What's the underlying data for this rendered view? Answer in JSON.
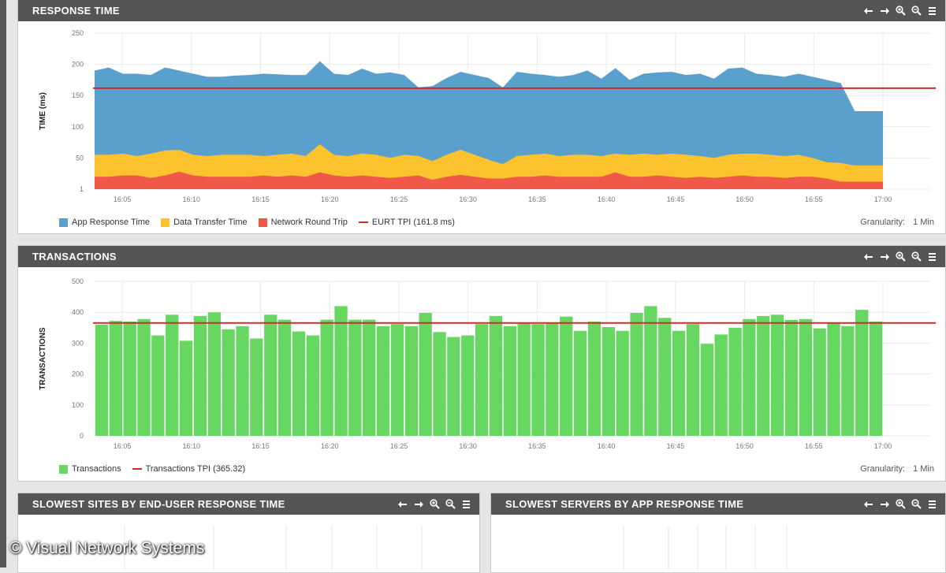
{
  "colors": {
    "app_response": "#5aa0cc",
    "data_transfer": "#fcc32e",
    "network_round_trip": "#f0584a",
    "threshold": "#d62a2a",
    "transactions": "#66d861",
    "header_bg": "#555555"
  },
  "toolbar_icons": [
    "arrow-left-icon",
    "arrow-right-icon",
    "zoom-in-icon",
    "zoom-out-icon",
    "menu-icon"
  ],
  "response_panel": {
    "title": "RESPONSE TIME",
    "granularity_label": "Granularity:",
    "granularity_value": "1 Min",
    "legend": {
      "app": "App Response Time",
      "data": "Data Transfer Time",
      "network": "Network Round Trip",
      "tpi": "EURT TPI (161.8 ms)"
    }
  },
  "transactions_panel": {
    "title": "TRANSACTIONS",
    "granularity_label": "Granularity:",
    "granularity_value": "1 Min",
    "legend": {
      "tx": "Transactions",
      "tpi": "Transactions TPI (365.32)"
    }
  },
  "sites_panel": {
    "title": "SLOWEST SITES BY END-USER RESPONSE TIME"
  },
  "servers_panel": {
    "title": "SLOWEST SERVERS BY APP RESPONSE TIME"
  },
  "watermark": "© Visual Network Systems",
  "chart_data": [
    {
      "type": "area",
      "title": "RESPONSE TIME",
      "ylabel": "TIME (ms)",
      "xlabel": "",
      "ylim": [
        0,
        250
      ],
      "yticks": [
        "250",
        "200",
        "150",
        "100",
        "50",
        "1"
      ],
      "xticks": [
        "16:05",
        "16:10",
        "16:15",
        "16:20",
        "16:25",
        "16:30",
        "16:35",
        "16:40",
        "16:45",
        "16:50",
        "16:55",
        "17:00"
      ],
      "x_range": [
        "16:03",
        "17:00"
      ],
      "threshold": 161.8,
      "series": [
        {
          "name": "App Response Time",
          "total": [
            190,
            195,
            185,
            185,
            183,
            195,
            190,
            185,
            180,
            180,
            182,
            183,
            185,
            184,
            183,
            183,
            205,
            185,
            183,
            193,
            185,
            187,
            183,
            163,
            165,
            178,
            188,
            183,
            178,
            163,
            188,
            185,
            183,
            180,
            183,
            190,
            177,
            194,
            175,
            185,
            187,
            188,
            183,
            185,
            177,
            193,
            195,
            185,
            183,
            180,
            185,
            180,
            175,
            170,
            125,
            125,
            125
          ]
        },
        {
          "name": "Data Transfer Time",
          "total": [
            55,
            55,
            57,
            53,
            57,
            62,
            63,
            55,
            53,
            55,
            55,
            55,
            53,
            55,
            57,
            53,
            72,
            55,
            53,
            57,
            55,
            50,
            55,
            53,
            45,
            55,
            63,
            55,
            47,
            40,
            53,
            55,
            57,
            53,
            55,
            55,
            53,
            57,
            55,
            57,
            55,
            57,
            55,
            53,
            50,
            55,
            57,
            57,
            55,
            53,
            55,
            50,
            43,
            42,
            38,
            38,
            38
          ]
        },
        {
          "name": "Network Round Trip",
          "total": [
            20,
            20,
            22,
            22,
            18,
            22,
            28,
            22,
            20,
            20,
            20,
            20,
            22,
            20,
            22,
            20,
            27,
            22,
            20,
            22,
            20,
            18,
            20,
            22,
            15,
            20,
            23,
            20,
            17,
            17,
            20,
            20,
            22,
            20,
            20,
            20,
            20,
            27,
            20,
            20,
            22,
            20,
            18,
            20,
            18,
            20,
            22,
            20,
            20,
            18,
            20,
            20,
            17,
            12,
            12,
            12,
            12
          ]
        }
      ],
      "legend_position": "bottom-left"
    },
    {
      "type": "bar",
      "title": "TRANSACTIONS",
      "ylabel": "TRANSACTIONS",
      "xlabel": "",
      "ylim": [
        0,
        500
      ],
      "yticks": [
        "500",
        "400",
        "300",
        "200",
        "100",
        "0"
      ],
      "xticks": [
        "16:05",
        "16:10",
        "16:15",
        "16:20",
        "16:25",
        "16:30",
        "16:35",
        "16:40",
        "16:45",
        "16:50",
        "16:55",
        "17:00"
      ],
      "x_range": [
        "16:03",
        "17:00"
      ],
      "threshold": 365.32,
      "series": [
        {
          "name": "Transactions",
          "values": [
            360,
            372,
            370,
            378,
            325,
            392,
            308,
            388,
            400,
            345,
            355,
            315,
            392,
            376,
            338,
            325,
            376,
            420,
            376,
            376,
            355,
            362,
            355,
            398,
            336,
            320,
            325,
            362,
            388,
            355,
            365,
            362,
            365,
            386,
            340,
            370,
            352,
            340,
            398,
            420,
            382,
            340,
            362,
            298,
            328,
            350,
            378,
            388,
            392,
            375,
            378,
            348,
            365,
            355,
            408,
            370
          ]
        }
      ],
      "legend_position": "bottom-left"
    }
  ]
}
